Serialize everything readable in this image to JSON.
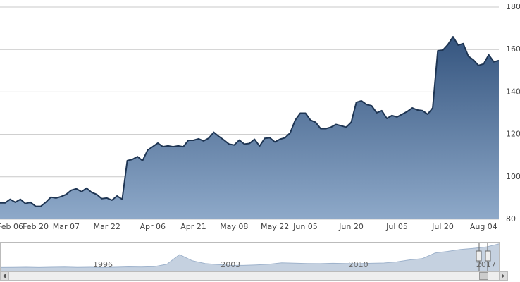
{
  "chart_data": [
    {
      "type": "area",
      "color": "#1e3553",
      "grid": true,
      "categories": [
        null,
        null,
        "Feb 06",
        null,
        null,
        null,
        null,
        "Feb 20",
        null,
        null,
        null,
        null,
        null,
        "Mar 07",
        null,
        null,
        null,
        null,
        null,
        null,
        null,
        "Mar 22",
        null,
        null,
        null,
        null,
        null,
        null,
        null,
        null,
        "Apr 06",
        null,
        null,
        null,
        null,
        null,
        null,
        null,
        "Apr 21",
        null,
        null,
        null,
        null,
        null,
        null,
        null,
        "May 08",
        null,
        null,
        null,
        null,
        null,
        null,
        null,
        "May 22",
        null,
        null,
        null,
        null,
        null,
        "Jun 05",
        null,
        null,
        null,
        null,
        null,
        null,
        null,
        null,
        "Jun 20",
        null,
        null,
        null,
        null,
        null,
        null,
        null,
        null,
        "Jul 05",
        null,
        null,
        null,
        null,
        null,
        null,
        null,
        null,
        "Jul 20",
        null,
        null,
        null,
        null,
        null,
        null,
        null,
        "Aug 04",
        null,
        null,
        null
      ],
      "values": [
        87.7,
        87.7,
        89.4,
        88.0,
        89.4,
        87.4,
        88.0,
        86.1,
        86.1,
        88.0,
        90.4,
        90.0,
        90.7,
        91.7,
        93.7,
        94.4,
        93.0,
        94.7,
        92.7,
        91.7,
        89.7,
        90.0,
        89.0,
        91.0,
        89.4,
        107.6,
        108.2,
        109.5,
        107.6,
        112.6,
        114.2,
        115.9,
        114.2,
        114.6,
        114.2,
        114.6,
        114.2,
        117.2,
        117.2,
        117.9,
        116.9,
        118.2,
        121.0,
        119.0,
        117.3,
        115.4,
        115.0,
        117.3,
        115.4,
        115.7,
        117.7,
        114.5,
        118.1,
        118.4,
        116.4,
        117.7,
        118.4,
        120.7,
        126.7,
        130.0,
        130.0,
        126.7,
        125.7,
        122.7,
        122.7,
        123.4,
        124.7,
        124.1,
        123.4,
        125.7,
        135.1,
        135.8,
        134.1,
        133.5,
        130.2,
        131.2,
        127.5,
        128.9,
        128.2,
        129.5,
        130.8,
        132.5,
        131.5,
        131.2,
        129.5,
        132.5,
        159.4,
        159.7,
        162.4,
        166.0,
        162.1,
        162.8,
        156.8,
        155.1,
        152.5,
        153.2,
        157.5,
        154.2,
        154.8
      ],
      "ylim": [
        80,
        180
      ],
      "yticks": [
        80,
        100,
        120,
        140,
        160,
        180
      ]
    },
    {
      "type": "area",
      "color": "#9fb3cc",
      "categories": [
        null,
        null,
        null,
        null,
        null,
        null,
        null,
        null,
        "1996",
        null,
        null,
        null,
        null,
        null,
        null,
        null,
        null,
        null,
        "2003",
        null,
        null,
        null,
        null,
        null,
        null,
        null,
        null,
        null,
        "2010",
        null,
        null,
        null,
        null,
        null,
        null,
        null,
        null,
        null,
        "2017",
        null
      ],
      "values": [
        20,
        21,
        22,
        20,
        22,
        23,
        21,
        22,
        20,
        22,
        24,
        23,
        25,
        40,
        100,
        62,
        45,
        38,
        34,
        33,
        36,
        40,
        49,
        47,
        45,
        44,
        46,
        45,
        44,
        46,
        48,
        55,
        67,
        75,
        110,
        120,
        132,
        138,
        147,
        166
      ],
      "ylim": [
        0,
        170
      ]
    }
  ]
}
